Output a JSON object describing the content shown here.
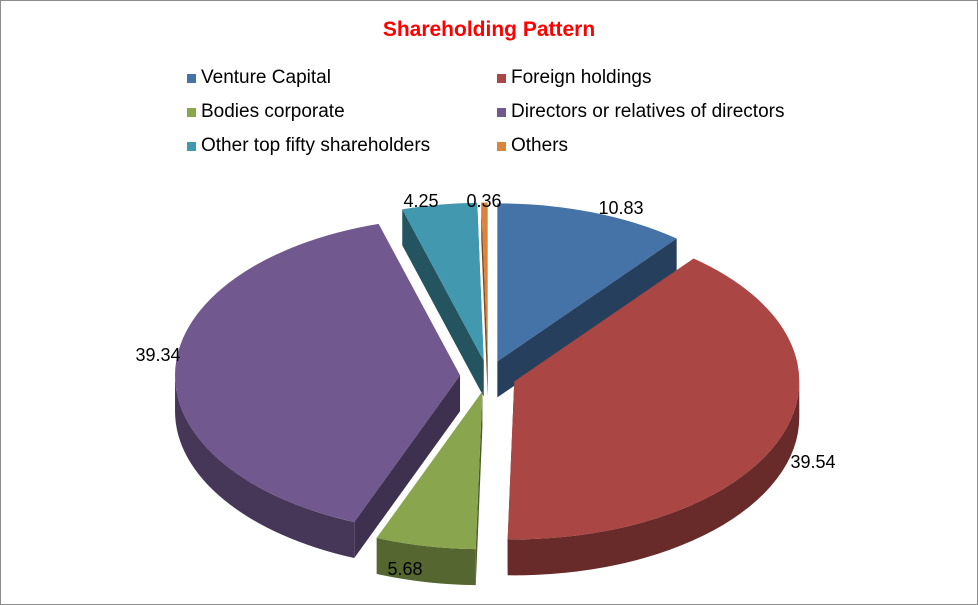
{
  "chart_data": {
    "type": "pie",
    "title": "Shareholding Pattern",
    "title_color": "#ff0000",
    "legend_position": "top",
    "categories": [
      "Venture Capital",
      "Foreign holdings",
      "Bodies corporate",
      "Directors or relatives of directors",
      "Other top fifty shareholders",
      "Others"
    ],
    "values": [
      10.83,
      39.54,
      5.68,
      39.34,
      4.25,
      0.36
    ],
    "value_labels": [
      "10.83",
      "39.54",
      "5.68",
      "39.34",
      "4.25",
      "0.36"
    ],
    "colors": [
      "#4572a7",
      "#aa4643",
      "#89a54e",
      "#71588f",
      "#4198af",
      "#db843d"
    ],
    "style": "3d-exploded"
  }
}
